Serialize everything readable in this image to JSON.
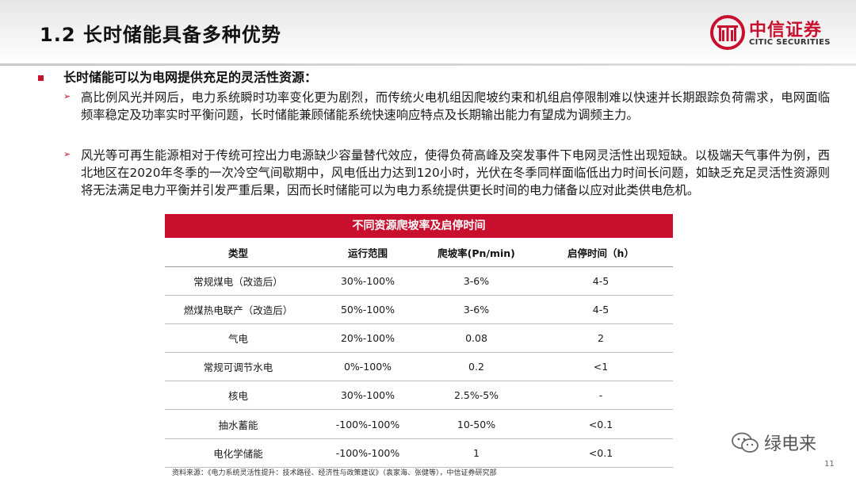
{
  "header": {
    "title": "1.2 长时储能具备多种优势",
    "logo_cn": "中信证券",
    "logo_en": "CITIC SECURITIES"
  },
  "heading": "长时储能可以为电网提供充足的灵活性资源：",
  "bullets": [
    "高比例风光并网后，电力系统瞬时功率变化更为剧烈，而传统火电机组因爬坡约束和机组启停限制难以快速并长期跟踪负荷需求，电网面临频率稳定及功率实时平衡问题，长时储能兼顾储能系统快速响应特点及长期输出能力有望成为调频主力。",
    "风光等可再生能源相对于传统可控出力电源缺少容量替代效应，使得负荷高峰及突发事件下电网灵活性出现短缺。以极端天气事件为例，西北地区在2020年冬季的一次冷空气间歇期中，风电低出力达到120小时，光伏在冬季同样面临低出力时间长问题，如缺乏充足灵活性资源则将无法满足电力平衡并引发严重后果，因而长时储能可以为电力系统提供更长时间的电力储备以应对此类供电危机。"
  ],
  "table": {
    "title": "不同资源爬坡率及启停时间",
    "headers": [
      "类型",
      "运行范围",
      "爬坡率(Pn/min)",
      "启停时间（h）"
    ],
    "rows": [
      [
        "常规煤电（改造后）",
        "30%-100%",
        "3-6%",
        "4-5"
      ],
      [
        "燃煤热电联产（改造后）",
        "50%-100%",
        "3-6%",
        "4-5"
      ],
      [
        "气电",
        "20%-100%",
        "0.08",
        "2"
      ],
      [
        "常规可调节水电",
        "0%-100%",
        "0.2",
        "<1"
      ],
      [
        "核电",
        "30%-100%",
        "2.5%-5%",
        "-"
      ],
      [
        "抽水蓄能",
        "-100%-100%",
        "10-50%",
        "<0.1"
      ],
      [
        "电化学储能",
        "-100%-100%",
        "1",
        "<0.1"
      ]
    ]
  },
  "source": "资料来源：《电力系统灵活性提升：技术路径、经济性与政策建议》（袁家海、张健等），中信证券研究部",
  "watermark": "绿电来",
  "page_number": "11",
  "colors": {
    "accent": "#c8102e"
  },
  "icons": {
    "bullet": "square-bullet-icon",
    "sub_bullet": "arrow-bullet-icon",
    "watermark": "wechat-icon"
  }
}
